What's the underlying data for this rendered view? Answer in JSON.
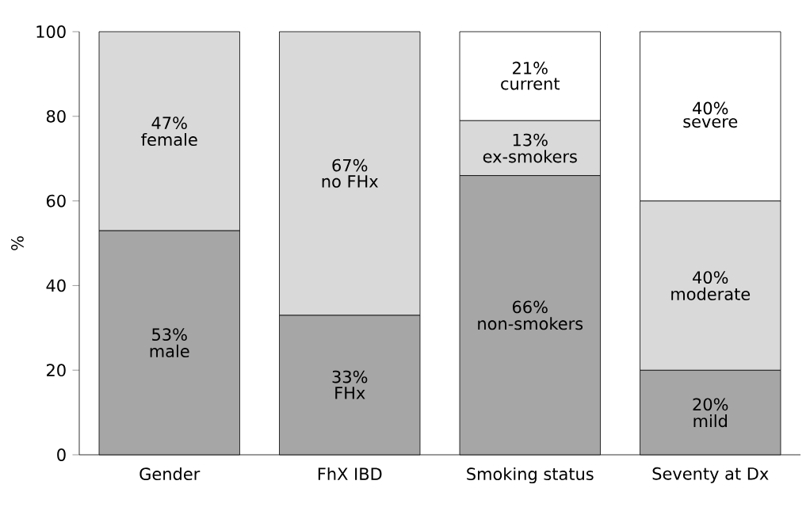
{
  "chart_data": {
    "type": "bar",
    "stacked": true,
    "ylabel": "%",
    "categories": [
      "Gender",
      "FhX IBD",
      "Smoking status",
      "Seventy at Dx"
    ],
    "series": [
      {
        "color": "#a6a6a6",
        "values": [
          53,
          33,
          66,
          20
        ],
        "value_labels": [
          "53%",
          "33%",
          "66%",
          "20%"
        ]
      },
      {
        "color": "#d9d9d9",
        "values": [
          47,
          67,
          13,
          40
        ],
        "value_labels": [
          "47%",
          "67%",
          "13%",
          "40%"
        ]
      },
      {
        "color": "#ffffff",
        "values": [
          null,
          null,
          21,
          40
        ],
        "value_labels": [
          null,
          null,
          "21%",
          "40%"
        ]
      }
    ],
    "annotations": [
      "male",
      "FHx",
      "non-smokers",
      "mild",
      "female",
      "no FHx",
      "ex-smokers",
      "moderate",
      "current",
      "severe"
    ],
    "ylim": [
      0,
      100
    ],
    "yticks": [
      0,
      20,
      40,
      60,
      80,
      100
    ],
    "grid": false
  }
}
